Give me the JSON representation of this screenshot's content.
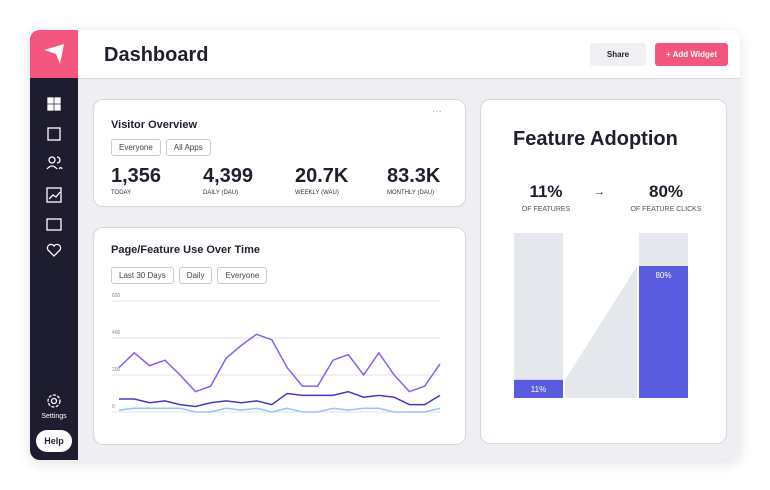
{
  "header": {
    "title": "Dashboard",
    "share": "Share",
    "add_widget": "+ Add Widget"
  },
  "sidebar": {
    "settings": "Settings",
    "help": "Help"
  },
  "visitor_overview": {
    "title": "Visitor Overview",
    "filters": [
      "Everyone",
      "All Apps"
    ],
    "stats": [
      {
        "value": "1,356",
        "label": "TODAY"
      },
      {
        "value": "4,399",
        "label": "DAILY (DAU)"
      },
      {
        "value": "20.7K",
        "label": "WEEKLY (WAU)"
      },
      {
        "value": "83.3K",
        "label": "MONTHLY (DAU)"
      }
    ]
  },
  "usage": {
    "title": "Page/Feature Use Over Time",
    "filters": [
      "Last 30 Days",
      "Daily",
      "Everyone"
    ],
    "chart_data": {
      "type": "line",
      "ylim": [
        0,
        600
      ],
      "yticks": [
        0,
        200,
        400,
        600
      ],
      "grid": true,
      "series": [
        {
          "color": "#8b5cf6",
          "values": [
            240,
            320,
            250,
            280,
            200,
            110,
            140,
            290,
            360,
            420,
            390,
            240,
            140,
            140,
            280,
            310,
            200,
            320,
            200,
            110,
            140,
            260
          ]
        },
        {
          "color": "#4338ca",
          "values": [
            70,
            70,
            50,
            60,
            40,
            30,
            50,
            60,
            50,
            60,
            40,
            100,
            90,
            90,
            90,
            110,
            80,
            90,
            80,
            40,
            40,
            90
          ]
        },
        {
          "color": "#93c5fd",
          "values": [
            10,
            20,
            20,
            20,
            20,
            0,
            0,
            20,
            10,
            20,
            0,
            20,
            0,
            0,
            20,
            10,
            20,
            20,
            0,
            0,
            0,
            20
          ]
        }
      ]
    }
  },
  "feature_adoption": {
    "title": "Feature Adoption",
    "color": "#5b5be0",
    "from": {
      "value": 11,
      "label": "11%",
      "caption": "OF FEATURES"
    },
    "to": {
      "value": 80,
      "label": "80%",
      "caption": "OF FEATURE CLICKS"
    }
  }
}
